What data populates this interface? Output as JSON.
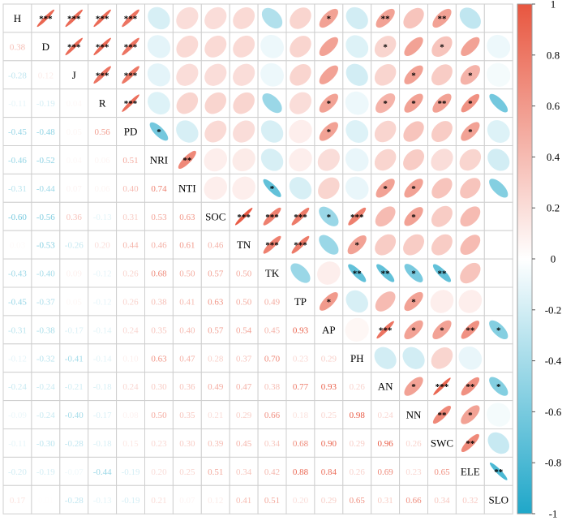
{
  "chart_data": {
    "type": "heatmap",
    "subtype": "correlation-matrix (lower: coefficients, upper: ellipses with significance stars)",
    "variables": [
      "H",
      "D",
      "J",
      "R",
      "PD",
      "NRI",
      "NTI",
      "SOC",
      "TN",
      "TK",
      "TP",
      "AP",
      "PH",
      "AN",
      "NN",
      "SWC",
      "ELE",
      "SLO"
    ],
    "lower_triangle": [
      [],
      [
        "0.38"
      ],
      [
        "-0.28",
        "0.12"
      ],
      [
        "-0.11",
        "-0.19",
        "0.04"
      ],
      [
        "-0.45",
        "-0.48",
        "0.05",
        "0.56"
      ],
      [
        "-0.46",
        "-0.52",
        "0.04",
        "0.06",
        "0.51"
      ],
      [
        "-0.31",
        "-0.44",
        "0.07",
        "0.06",
        "0.40",
        "0.74"
      ],
      [
        "-0.60",
        "-0.56",
        "0.36",
        "-0.13",
        "0.31",
        "0.53",
        "0.63"
      ],
      [
        "0.03",
        "-0.53",
        "-0.26",
        "0.20",
        "0.44",
        "0.46",
        "0.61",
        "0.46"
      ],
      [
        "-0.43",
        "-0.40",
        "0.09",
        "-0.12",
        "0.26",
        "0.68",
        "0.50",
        "0.57",
        "0.50"
      ],
      [
        "-0.45",
        "-0.37",
        "0.05",
        "-0.12",
        "0.26",
        "0.38",
        "0.41",
        "0.63",
        "0.50",
        "0.49"
      ],
      [
        "-0.31",
        "-0.38",
        "-0.17",
        "-0.14",
        "0.24",
        "0.35",
        "0.40",
        "0.57",
        "0.54",
        "0.45",
        "0.93"
      ],
      [
        "-0.12",
        "-0.32",
        "-0.41",
        "-0.14",
        "0.10",
        "0.63",
        "0.47",
        "0.28",
        "0.37",
        "0.70",
        "0.23",
        "0.29"
      ],
      [
        "-0.24",
        "-0.24",
        "-0.21",
        "-0.18",
        "0.24",
        "0.30",
        "0.36",
        "0.49",
        "0.47",
        "0.38",
        "0.77",
        "0.93",
        "0.26"
      ],
      [
        "-0.09",
        "-0.24",
        "-0.40",
        "-0.17",
        "0.08",
        "0.50",
        "0.35",
        "0.21",
        "0.29",
        "0.66",
        "0.18",
        "0.25",
        "0.98",
        "0.24"
      ],
      [
        "-0.11",
        "-0.30",
        "-0.28",
        "-0.18",
        "0.15",
        "0.23",
        "0.30",
        "0.39",
        "0.45",
        "0.34",
        "0.68",
        "0.90",
        "0.29",
        "0.96",
        "0.26"
      ],
      [
        "-0.20",
        "-0.19",
        "-0.07",
        "-0.44",
        "-0.19",
        "0.20",
        "0.25",
        "0.51",
        "0.34",
        "0.42",
        "0.88",
        "0.84",
        "0.26",
        "0.69",
        "0.23",
        "0.65"
      ],
      [
        "0.17",
        "0.01",
        "-0.28",
        "-0.13",
        "-0.19",
        "0.21",
        "0.07",
        "0.12",
        "0.41",
        "0.51",
        "0.20",
        "0.29",
        "0.65",
        "0.31",
        "0.66",
        "0.34",
        "0.32"
      ]
    ],
    "upper_triangle": [
      [
        "0.90",
        "0.88",
        "0.88",
        "0.82",
        "-0.18",
        "0.20",
        "0.20",
        "0.22",
        "-0.35",
        "0.25",
        "0.55",
        "-0.20",
        "0.55",
        "0.35",
        "0.55",
        "-0.28"
      ],
      [
        "0.88",
        "0.88",
        "0.82",
        "-0.12",
        "0.22",
        "0.22",
        "0.22",
        "-0.08",
        "0.25",
        "0.55",
        "-0.15",
        "0.25",
        "0.55",
        "0.35",
        "0.55",
        "-0.08"
      ],
      [
        "0.82",
        "0.80",
        "-0.12",
        "0.20",
        "0.20",
        "0.20",
        "-0.08",
        "0.25",
        "0.55",
        "-0.20",
        "0.25",
        "0.55",
        "0.30",
        "0.45",
        "-0.05"
      ],
      [
        "0.85",
        "-0.15",
        "0.25",
        "0.25",
        "0.25",
        "-0.45",
        "0.20",
        "0.55",
        "-0.08",
        "0.45",
        "0.55",
        "0.55",
        "0.65",
        "-0.62"
      ],
      [
        "-0.62",
        "-0.18",
        "0.22",
        "0.20",
        "-0.18",
        "0.10",
        "0.55",
        "-0.15",
        "0.25",
        "0.35",
        "0.30",
        "0.55",
        "-0.15"
      ],
      [
        "0.70",
        "0.10",
        "0.12",
        "-0.18",
        "0.10",
        "0.20",
        "-0.10",
        "0.25",
        "0.30",
        "0.20",
        "0.25",
        "-0.20"
      ],
      [
        "0.10",
        "0.10",
        "-0.70",
        "-0.18",
        "0.25",
        "-0.10",
        "0.55",
        "0.55",
        "0.35",
        "0.35",
        "-0.55"
      ],
      [
        "0.97",
        "0.75",
        "0.78",
        "-0.45",
        "0.75",
        "0.40",
        "0.55",
        "0.30",
        "0.40"
      ],
      [
        "0.75",
        "0.78",
        "-0.45",
        "0.55",
        "0.30",
        "0.30",
        "0.30",
        "0.40"
      ],
      [
        "-0.45",
        "0.10",
        "-0.70",
        "-0.70",
        "-0.60",
        "-0.70",
        "0.35"
      ],
      [
        "0.60",
        "-0.18",
        "0.40",
        "0.55",
        "0.10",
        "0.10"
      ],
      [
        "0.05",
        "0.82",
        "0.55",
        "0.55",
        "0.65",
        "-0.55"
      ],
      [
        "-0.20",
        "-0.20",
        "0.25",
        "-0.10"
      ],
      [
        "0.55",
        "0.90",
        "0.65",
        "-0.55"
      ],
      [
        "0.70",
        "0.55",
        "-0.05"
      ],
      [
        "0.70",
        "-0.25"
      ],
      [
        "-0.80"
      ]
    ],
    "significance_upper": [
      [
        "***",
        "***",
        "***",
        "***",
        "",
        "",
        "",
        "",
        "",
        "",
        "*",
        "",
        "**",
        "",
        "**",
        ""
      ],
      [
        "***",
        "***",
        "***",
        "",
        "",
        "",
        "",
        "",
        "",
        "",
        "",
        "*",
        "",
        "*",
        ""
      ],
      [
        "***",
        "***",
        "",
        "",
        "",
        "",
        "",
        "",
        "",
        "",
        "",
        "*",
        "",
        "*",
        ""
      ],
      [
        "***",
        "",
        "",
        "",
        "",
        "",
        "",
        "*",
        "",
        "*",
        "*",
        "**",
        "*"
      ],
      [
        "*",
        "",
        "",
        "",
        "",
        "",
        "*",
        "",
        "",
        "",
        "",
        "*",
        ""
      ],
      [
        "**",
        "",
        "",
        "",
        "",
        "",
        "",
        "",
        "",
        "",
        "",
        ""
      ],
      [
        "",
        "",
        "*",
        "",
        "",
        "",
        "*",
        "*",
        "",
        "",
        ""
      ],
      [
        "***",
        "***",
        "***",
        "*",
        "***",
        "",
        "*",
        "",
        ""
      ],
      [
        "***",
        "***",
        "",
        "*",
        "",
        "",
        "",
        ""
      ],
      [
        "",
        "",
        "**",
        "**",
        "*",
        "**",
        ""
      ],
      [
        "*",
        "",
        "",
        "*",
        "",
        ""
      ],
      [
        "",
        "***",
        "*",
        "*",
        "**",
        "*"
      ],
      [
        "",
        "",
        "",
        ""
      ],
      [
        "*",
        "***",
        "**",
        "*"
      ],
      [
        "**",
        "*",
        ""
      ],
      [
        "**",
        ""
      ],
      [
        "**"
      ]
    ],
    "colorbar": {
      "min": -1,
      "max": 1,
      "ticks": [
        "1",
        "0.8",
        "0.6",
        "0.4",
        "0.2",
        "0",
        "-0.2",
        "-0.4",
        "-0.6",
        "-0.8",
        "-1"
      ],
      "color_negative": "#1fa7c9",
      "color_zero": "#ffffff",
      "color_positive": "#e8563f"
    }
  }
}
